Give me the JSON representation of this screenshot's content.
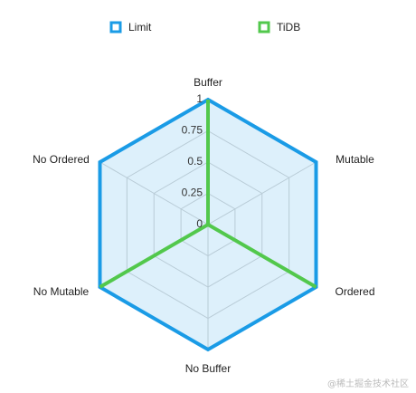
{
  "chart_data": {
    "type": "radar",
    "categories": [
      "Buffer",
      "Mutable",
      "Ordered",
      "No Buffer",
      "No Mutable",
      "No Ordered"
    ],
    "series": [
      {
        "name": "Limit",
        "color": "#1a9be6",
        "values": [
          1,
          1,
          1,
          1,
          1,
          1
        ]
      },
      {
        "name": "TiDB",
        "color": "#52c84c",
        "values": [
          1,
          0,
          1,
          0,
          1,
          0
        ]
      }
    ],
    "rlim": [
      0,
      1
    ],
    "rticks": [
      0,
      0.25,
      0.5,
      0.75,
      1
    ],
    "grid": true,
    "legend": "top"
  },
  "watermark": "@稀土掘金技术社区"
}
